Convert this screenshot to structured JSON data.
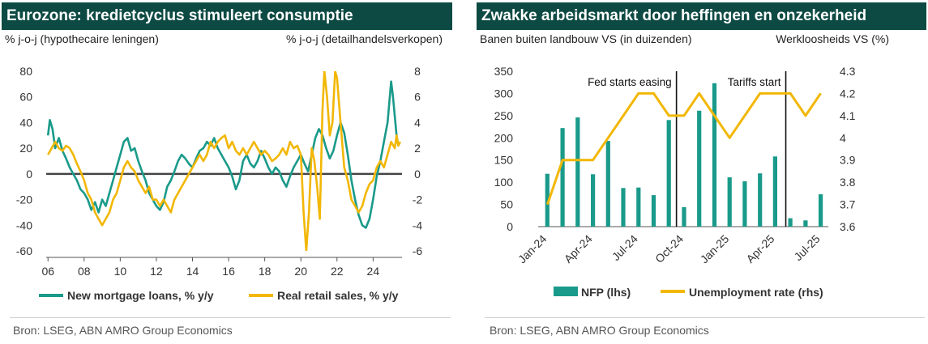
{
  "left": {
    "title": "Eurozone: kredietcyclus stimuleert consumptie",
    "ylabel_left": "% j-o-j (hypothecaire leningen)",
    "ylabel_right": "% j-o-j (detailhandelsverkopen)",
    "source": "Bron: LSEG, ABN AMRO Group Economics"
  },
  "right": {
    "title": "Zwakke arbeidsmarkt door heffingen en onzekerheid",
    "ylabel_left": "Banen buiten landbouw VS (in duizenden)",
    "ylabel_right": "Werkloosheids VS (%)",
    "source": "Bron: LSEG, ABN AMRO Group Economics"
  },
  "chart_data": [
    {
      "type": "line",
      "x_ticks": [
        "06",
        "08",
        "10",
        "12",
        "14",
        "16",
        "18",
        "20",
        "22",
        "24"
      ],
      "x_tick_years": [
        2006,
        2008,
        2010,
        2012,
        2014,
        2016,
        2018,
        2020,
        2022,
        2024
      ],
      "x_range": [
        2005.9,
        2025.6
      ],
      "y_left_ticks": [
        "80",
        "60",
        "40",
        "20",
        "0",
        "-20",
        "-40",
        "-60"
      ],
      "y_left_range": [
        -60,
        80
      ],
      "y_right_ticks": [
        "8",
        "6",
        "4",
        "2",
        "0",
        "-2",
        "-4",
        "-6"
      ],
      "y_right_range": [
        -6,
        8
      ],
      "zero_line": true,
      "legend_position": "bottom",
      "series": [
        {
          "name": "New mortgage loans, % y/y",
          "axis": "left",
          "color": "#1a9a8a",
          "points": [
            [
              2006.0,
              30
            ],
            [
              2006.1,
              42
            ],
            [
              2006.25,
              35
            ],
            [
              2006.4,
              20
            ],
            [
              2006.6,
              28
            ],
            [
              2006.8,
              18
            ],
            [
              2007.0,
              12
            ],
            [
              2007.2,
              5
            ],
            [
              2007.4,
              0
            ],
            [
              2007.6,
              -5
            ],
            [
              2007.8,
              -12
            ],
            [
              2008.0,
              -15
            ],
            [
              2008.2,
              -20
            ],
            [
              2008.4,
              -28
            ],
            [
              2008.6,
              -22
            ],
            [
              2008.8,
              -30
            ],
            [
              2009.0,
              -20
            ],
            [
              2009.2,
              -25
            ],
            [
              2009.4,
              -15
            ],
            [
              2009.6,
              -5
            ],
            [
              2009.8,
              5
            ],
            [
              2010.0,
              15
            ],
            [
              2010.2,
              25
            ],
            [
              2010.4,
              28
            ],
            [
              2010.6,
              18
            ],
            [
              2010.8,
              20
            ],
            [
              2011.0,
              10
            ],
            [
              2011.2,
              2
            ],
            [
              2011.4,
              -5
            ],
            [
              2011.6,
              -15
            ],
            [
              2011.8,
              -20
            ],
            [
              2012.0,
              -25
            ],
            [
              2012.2,
              -28
            ],
            [
              2012.4,
              -22
            ],
            [
              2012.6,
              -10
            ],
            [
              2012.8,
              -5
            ],
            [
              2013.0,
              2
            ],
            [
              2013.2,
              10
            ],
            [
              2013.4,
              15
            ],
            [
              2013.6,
              12
            ],
            [
              2013.8,
              8
            ],
            [
              2014.0,
              5
            ],
            [
              2014.2,
              12
            ],
            [
              2014.4,
              18
            ],
            [
              2014.6,
              20
            ],
            [
              2014.8,
              25
            ],
            [
              2015.0,
              22
            ],
            [
              2015.2,
              28
            ],
            [
              2015.4,
              20
            ],
            [
              2015.6,
              15
            ],
            [
              2015.8,
              10
            ],
            [
              2016.0,
              5
            ],
            [
              2016.2,
              -2
            ],
            [
              2016.4,
              -12
            ],
            [
              2016.6,
              -5
            ],
            [
              2016.8,
              10
            ],
            [
              2017.0,
              15
            ],
            [
              2017.2,
              8
            ],
            [
              2017.4,
              5
            ],
            [
              2017.6,
              10
            ],
            [
              2017.8,
              18
            ],
            [
              2018.0,
              12
            ],
            [
              2018.2,
              5
            ],
            [
              2018.4,
              0
            ],
            [
              2018.6,
              5
            ],
            [
              2018.8,
              2
            ],
            [
              2019.0,
              -5
            ],
            [
              2019.2,
              -10
            ],
            [
              2019.4,
              -2
            ],
            [
              2019.6,
              5
            ],
            [
              2019.8,
              10
            ],
            [
              2020.0,
              15
            ],
            [
              2020.2,
              8
            ],
            [
              2020.4,
              2
            ],
            [
              2020.6,
              15
            ],
            [
              2020.8,
              28
            ],
            [
              2021.0,
              35
            ],
            [
              2021.2,
              30
            ],
            [
              2021.4,
              20
            ],
            [
              2021.6,
              12
            ],
            [
              2021.8,
              18
            ],
            [
              2022.0,
              30
            ],
            [
              2022.2,
              40
            ],
            [
              2022.4,
              32
            ],
            [
              2022.6,
              15
            ],
            [
              2022.8,
              -5
            ],
            [
              2023.0,
              -20
            ],
            [
              2023.2,
              -32
            ],
            [
              2023.4,
              -40
            ],
            [
              2023.6,
              -42
            ],
            [
              2023.8,
              -35
            ],
            [
              2024.0,
              -20
            ],
            [
              2024.2,
              -2
            ],
            [
              2024.4,
              10
            ],
            [
              2024.6,
              25
            ],
            [
              2024.8,
              40
            ],
            [
              2025.0,
              72
            ],
            [
              2025.1,
              60
            ],
            [
              2025.2,
              45
            ],
            [
              2025.3,
              30
            ],
            [
              2025.4,
              22
            ]
          ]
        },
        {
          "name": "Real retail sales, % y/y",
          "axis": "right",
          "color": "#f2b705",
          "points": [
            [
              2006.0,
              1.5
            ],
            [
              2006.2,
              2.0
            ],
            [
              2006.4,
              2.5
            ],
            [
              2006.6,
              2.0
            ],
            [
              2006.8,
              1.8
            ],
            [
              2007.0,
              2.2
            ],
            [
              2007.2,
              2.0
            ],
            [
              2007.4,
              1.5
            ],
            [
              2007.6,
              0.8
            ],
            [
              2007.8,
              0.2
            ],
            [
              2008.0,
              -0.5
            ],
            [
              2008.2,
              -1.5
            ],
            [
              2008.4,
              -2.0
            ],
            [
              2008.6,
              -3.0
            ],
            [
              2008.8,
              -3.5
            ],
            [
              2009.0,
              -4.0
            ],
            [
              2009.2,
              -3.5
            ],
            [
              2009.4,
              -3.0
            ],
            [
              2009.6,
              -2.0
            ],
            [
              2009.8,
              -1.5
            ],
            [
              2010.0,
              -0.5
            ],
            [
              2010.2,
              0.5
            ],
            [
              2010.4,
              1.0
            ],
            [
              2010.6,
              0.5
            ],
            [
              2010.8,
              0.2
            ],
            [
              2011.0,
              -0.5
            ],
            [
              2011.2,
              -1.0
            ],
            [
              2011.4,
              -1.5
            ],
            [
              2011.6,
              -1.0
            ],
            [
              2011.8,
              -2.0
            ],
            [
              2012.0,
              -2.0
            ],
            [
              2012.2,
              -2.5
            ],
            [
              2012.4,
              -2.0
            ],
            [
              2012.6,
              -2.5
            ],
            [
              2012.8,
              -3.0
            ],
            [
              2013.0,
              -2.0
            ],
            [
              2013.2,
              -1.5
            ],
            [
              2013.4,
              -1.0
            ],
            [
              2013.6,
              -0.5
            ],
            [
              2013.8,
              0.0
            ],
            [
              2014.0,
              0.5
            ],
            [
              2014.2,
              1.0
            ],
            [
              2014.4,
              1.5
            ],
            [
              2014.6,
              1.0
            ],
            [
              2014.8,
              1.5
            ],
            [
              2015.0,
              2.5
            ],
            [
              2015.2,
              2.0
            ],
            [
              2015.4,
              2.5
            ],
            [
              2015.6,
              2.8
            ],
            [
              2015.8,
              3.0
            ],
            [
              2016.0,
              2.0
            ],
            [
              2016.2,
              2.5
            ],
            [
              2016.4,
              1.8
            ],
            [
              2016.6,
              1.5
            ],
            [
              2016.8,
              2.0
            ],
            [
              2017.0,
              1.5
            ],
            [
              2017.2,
              2.0
            ],
            [
              2017.4,
              2.5
            ],
            [
              2017.6,
              2.0
            ],
            [
              2017.8,
              1.5
            ],
            [
              2018.0,
              1.8
            ],
            [
              2018.2,
              1.5
            ],
            [
              2018.4,
              1.0
            ],
            [
              2018.6,
              1.2
            ],
            [
              2018.8,
              1.5
            ],
            [
              2019.0,
              2.0
            ],
            [
              2019.2,
              1.5
            ],
            [
              2019.4,
              2.5
            ],
            [
              2019.6,
              2.0
            ],
            [
              2019.8,
              2.2
            ],
            [
              2020.0,
              1.5
            ],
            [
              2020.15,
              -3.0
            ],
            [
              2020.3,
              -6.0
            ],
            [
              2020.45,
              -3.0
            ],
            [
              2020.6,
              2.0
            ],
            [
              2020.75,
              1.0
            ],
            [
              2020.9,
              -1.0
            ],
            [
              2021.05,
              -3.5
            ],
            [
              2021.2,
              5.0
            ],
            [
              2021.3,
              8.0
            ],
            [
              2021.45,
              6.0
            ],
            [
              2021.6,
              3.0
            ],
            [
              2021.75,
              4.0
            ],
            [
              2021.9,
              8.0
            ],
            [
              2022.0,
              7.5
            ],
            [
              2022.2,
              4.0
            ],
            [
              2022.4,
              0.5
            ],
            [
              2022.6,
              -0.5
            ],
            [
              2022.8,
              -2.0
            ],
            [
              2023.0,
              -2.5
            ],
            [
              2023.2,
              -3.0
            ],
            [
              2023.4,
              -2.5
            ],
            [
              2023.6,
              -1.5
            ],
            [
              2023.8,
              -0.8
            ],
            [
              2024.0,
              -0.5
            ],
            [
              2024.2,
              0.5
            ],
            [
              2024.4,
              1.0
            ],
            [
              2024.6,
              0.5
            ],
            [
              2024.8,
              1.5
            ],
            [
              2025.0,
              2.5
            ],
            [
              2025.2,
              2.0
            ],
            [
              2025.3,
              3.0
            ],
            [
              2025.4,
              2.2
            ],
            [
              2025.5,
              2.5
            ]
          ]
        }
      ]
    },
    {
      "type": "bar",
      "categories": [
        "Jan-24",
        "Feb-24",
        "Mar-24",
        "Apr-24",
        "May-24",
        "Jun-24",
        "Jul-24",
        "Aug-24",
        "Sep-24",
        "Oct-24",
        "Nov-24",
        "Dec-24",
        "Jan-25",
        "Feb-25",
        "Mar-25",
        "Apr-25",
        "May-25",
        "Jun-25",
        "Jul-25"
      ],
      "x_tick_labels": [
        "Jan-24",
        "Apr-24",
        "Jul-24",
        "Oct-24",
        "Jan-25",
        "Apr-25",
        "Jul-25"
      ],
      "x_tick_indices": [
        0,
        3,
        6,
        9,
        12,
        15,
        18
      ],
      "y_left_ticks": [
        "350",
        "300",
        "250",
        "200",
        "150",
        "100",
        "50",
        "0"
      ],
      "y_left_range": [
        0,
        350
      ],
      "y_right_ticks": [
        "4.3",
        "4.2",
        "4.1",
        "4",
        "3.9",
        "3.8",
        "3.7",
        "3.6"
      ],
      "y_right_range": [
        3.6,
        4.3
      ],
      "legend_position": "bottom",
      "series": [
        {
          "name": "NFP (lhs)",
          "axis": "left",
          "kind": "bar",
          "color": "#1a9a8a",
          "values": [
            119,
            222,
            246,
            118,
            193,
            87,
            88,
            71,
            240,
            44,
            261,
            323,
            111,
            102,
            120,
            158,
            19,
            14,
            73
          ]
        },
        {
          "name": "Unemployment rate (rhs)",
          "axis": "right",
          "kind": "line",
          "color": "#f2b705",
          "values": [
            3.7,
            3.9,
            3.9,
            3.9,
            4.0,
            4.1,
            4.2,
            4.2,
            4.1,
            4.1,
            4.2,
            4.1,
            4.0,
            4.1,
            4.2,
            4.2,
            4.2,
            4.1,
            4.2
          ]
        }
      ],
      "annotations": [
        {
          "text": "Fed starts easing",
          "index": 8.5
        },
        {
          "text": "Tariffs start",
          "index": 15.7
        }
      ]
    }
  ]
}
